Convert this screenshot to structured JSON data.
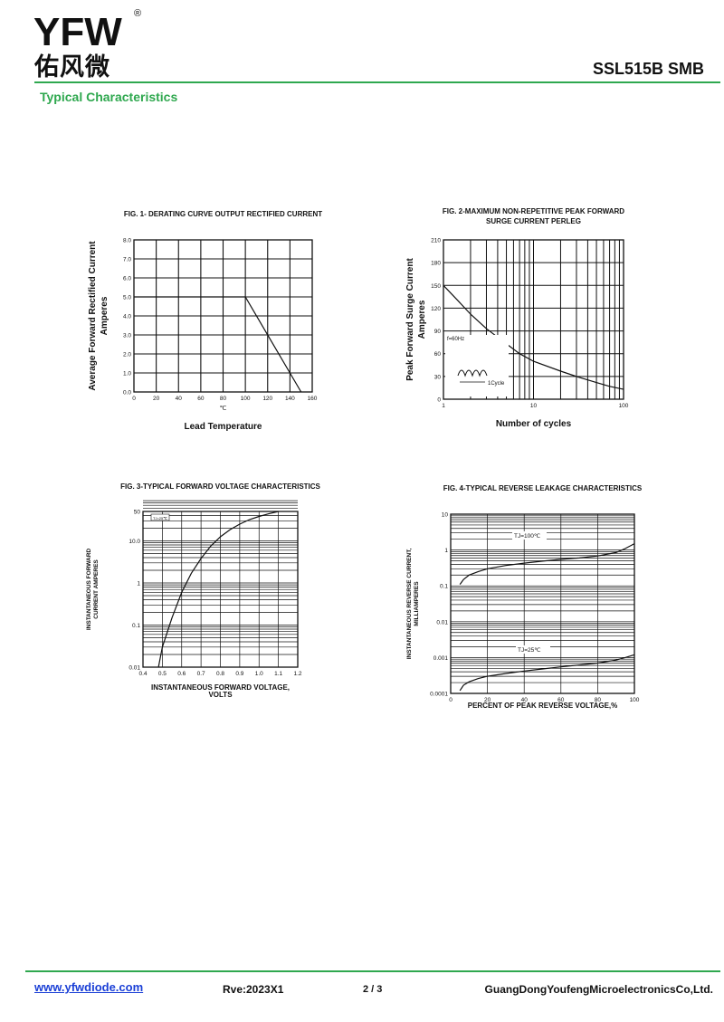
{
  "header": {
    "logo_text": "YFW",
    "logo_registered": "®",
    "logo_cn": "佑风微",
    "part_number": "SSL515B  SMB",
    "section_title": "Typical Characteristics",
    "accent_color": "#2fa84f",
    "logo_color": "#2fa84f"
  },
  "footer": {
    "url": "www.yfwdiode.com",
    "revision": "Rve:2023X1",
    "page": "2 / 3",
    "company": "GuangDongYoufengMicroelectronicsCo,Ltd."
  },
  "chart_data": [
    {
      "type": "line",
      "title": "FIG. 1- DERATING CURVE OUTPUT RECTIFIED CURRENT",
      "xlabel": "Lead Temperature",
      "xunit": "℃",
      "ylabel_lines": [
        "Average Forward Rectified Current",
        "Amperes"
      ],
      "xlim": [
        0,
        160
      ],
      "ylim": [
        0,
        8
      ],
      "xticks": [
        0,
        20,
        40,
        60,
        80,
        100,
        120,
        140,
        160
      ],
      "yticks": [
        "0.0",
        "1.0",
        "2.0",
        "3.0",
        "4.0",
        "5.0",
        "6.0",
        "7.0",
        "8.0"
      ],
      "grid": true,
      "series": [
        {
          "x": [
            0,
            100,
            150
          ],
          "y": [
            5.0,
            5.0,
            0.0
          ]
        }
      ]
    },
    {
      "type": "line",
      "title_lines": [
        "FIG. 2-MAXIMUM NON-REPETITIVE PEAK FORWARD",
        "SURGE CURRENT PERLEG"
      ],
      "xlabel": "Number of cycles",
      "ylabel_lines": [
        "Peak Forward Surge Current",
        "Amperes"
      ],
      "xscale": "log",
      "xlim": [
        1,
        100
      ],
      "ylim": [
        0,
        210
      ],
      "xticks": [
        "1",
        "10",
        "100"
      ],
      "yticks": [
        "0",
        "30",
        "60",
        "90",
        "120",
        "150",
        "180",
        "210"
      ],
      "grid": true,
      "annotations": [
        "f=60Hz",
        "1Cycle"
      ],
      "series": [
        {
          "x": [
            1,
            1.5,
            2,
            3,
            5,
            7,
            10,
            20,
            30,
            50,
            70,
            100
          ],
          "y": [
            150,
            128,
            112,
            93,
            73,
            60,
            50,
            37,
            30,
            22,
            17,
            13
          ]
        }
      ]
    },
    {
      "type": "line",
      "title": "FIG. 3-TYPICAL FORWARD VOLTAGE CHARACTERISTICS",
      "xlabel_lines": [
        "INSTANTANEOUS FORWARD VOLTAGE,",
        "VOLTS"
      ],
      "ylabel_lines": [
        "INSTANTANEOUS FORWARD",
        "CURRENT AMPERES"
      ],
      "yscale": "log",
      "xlim": [
        0.4,
        1.2
      ],
      "ylim": [
        0.01,
        50
      ],
      "xticks": [
        "0.4",
        "0.5",
        "0.6",
        "0.7",
        "0.8",
        "0.9",
        "1.0",
        "1.1",
        "1.2"
      ],
      "yticks": [
        "0.01",
        "0.1",
        "1",
        "10.0",
        "50"
      ],
      "grid": true,
      "annotations": [
        "TJ=25℃"
      ],
      "series": [
        {
          "x": [
            0.48,
            0.5,
            0.55,
            0.6,
            0.65,
            0.7,
            0.75,
            0.8,
            0.85,
            0.9,
            0.95,
            1.0,
            1.05,
            1.1
          ],
          "y": [
            0.01,
            0.03,
            0.15,
            0.6,
            1.7,
            3.8,
            7.5,
            12.5,
            18.5,
            25,
            32,
            38,
            44,
            50
          ]
        }
      ]
    },
    {
      "type": "line",
      "title": "FIG. 4-TYPICAL REVERSE LEAKAGE CHARACTERISTICS",
      "xlabel": "PERCENT OF PEAK REVERSE VOLTAGE,%",
      "ylabel_lines": [
        "INSTANTANEOUS REVERSE CURRENT,",
        "MILLIAMPERES"
      ],
      "yscale": "log",
      "xlim": [
        0,
        100
      ],
      "ylim": [
        0.0001,
        10
      ],
      "xticks": [
        "0",
        "20",
        "40",
        "60",
        "80",
        "100"
      ],
      "yticks": [
        "0.0001",
        "0.001",
        "0.01",
        "0.1",
        "1",
        "10"
      ],
      "grid": true,
      "series": [
        {
          "name": "TJ=100℃",
          "x": [
            5,
            7,
            10,
            15,
            20,
            30,
            40,
            50,
            60,
            70,
            80,
            90,
            95,
            100
          ],
          "y": [
            0.11,
            0.15,
            0.2,
            0.25,
            0.3,
            0.37,
            0.43,
            0.49,
            0.55,
            0.6,
            0.68,
            0.85,
            1.1,
            1.5
          ]
        },
        {
          "name": "TJ=25℃",
          "x": [
            5,
            7,
            10,
            15,
            20,
            30,
            40,
            50,
            60,
            70,
            80,
            90,
            95,
            100
          ],
          "y": [
            0.00012,
            0.00017,
            0.00021,
            0.00026,
            0.0003,
            0.00036,
            0.00042,
            0.00048,
            0.00055,
            0.00062,
            0.0007,
            0.00085,
            0.001,
            0.0012
          ]
        }
      ]
    }
  ]
}
